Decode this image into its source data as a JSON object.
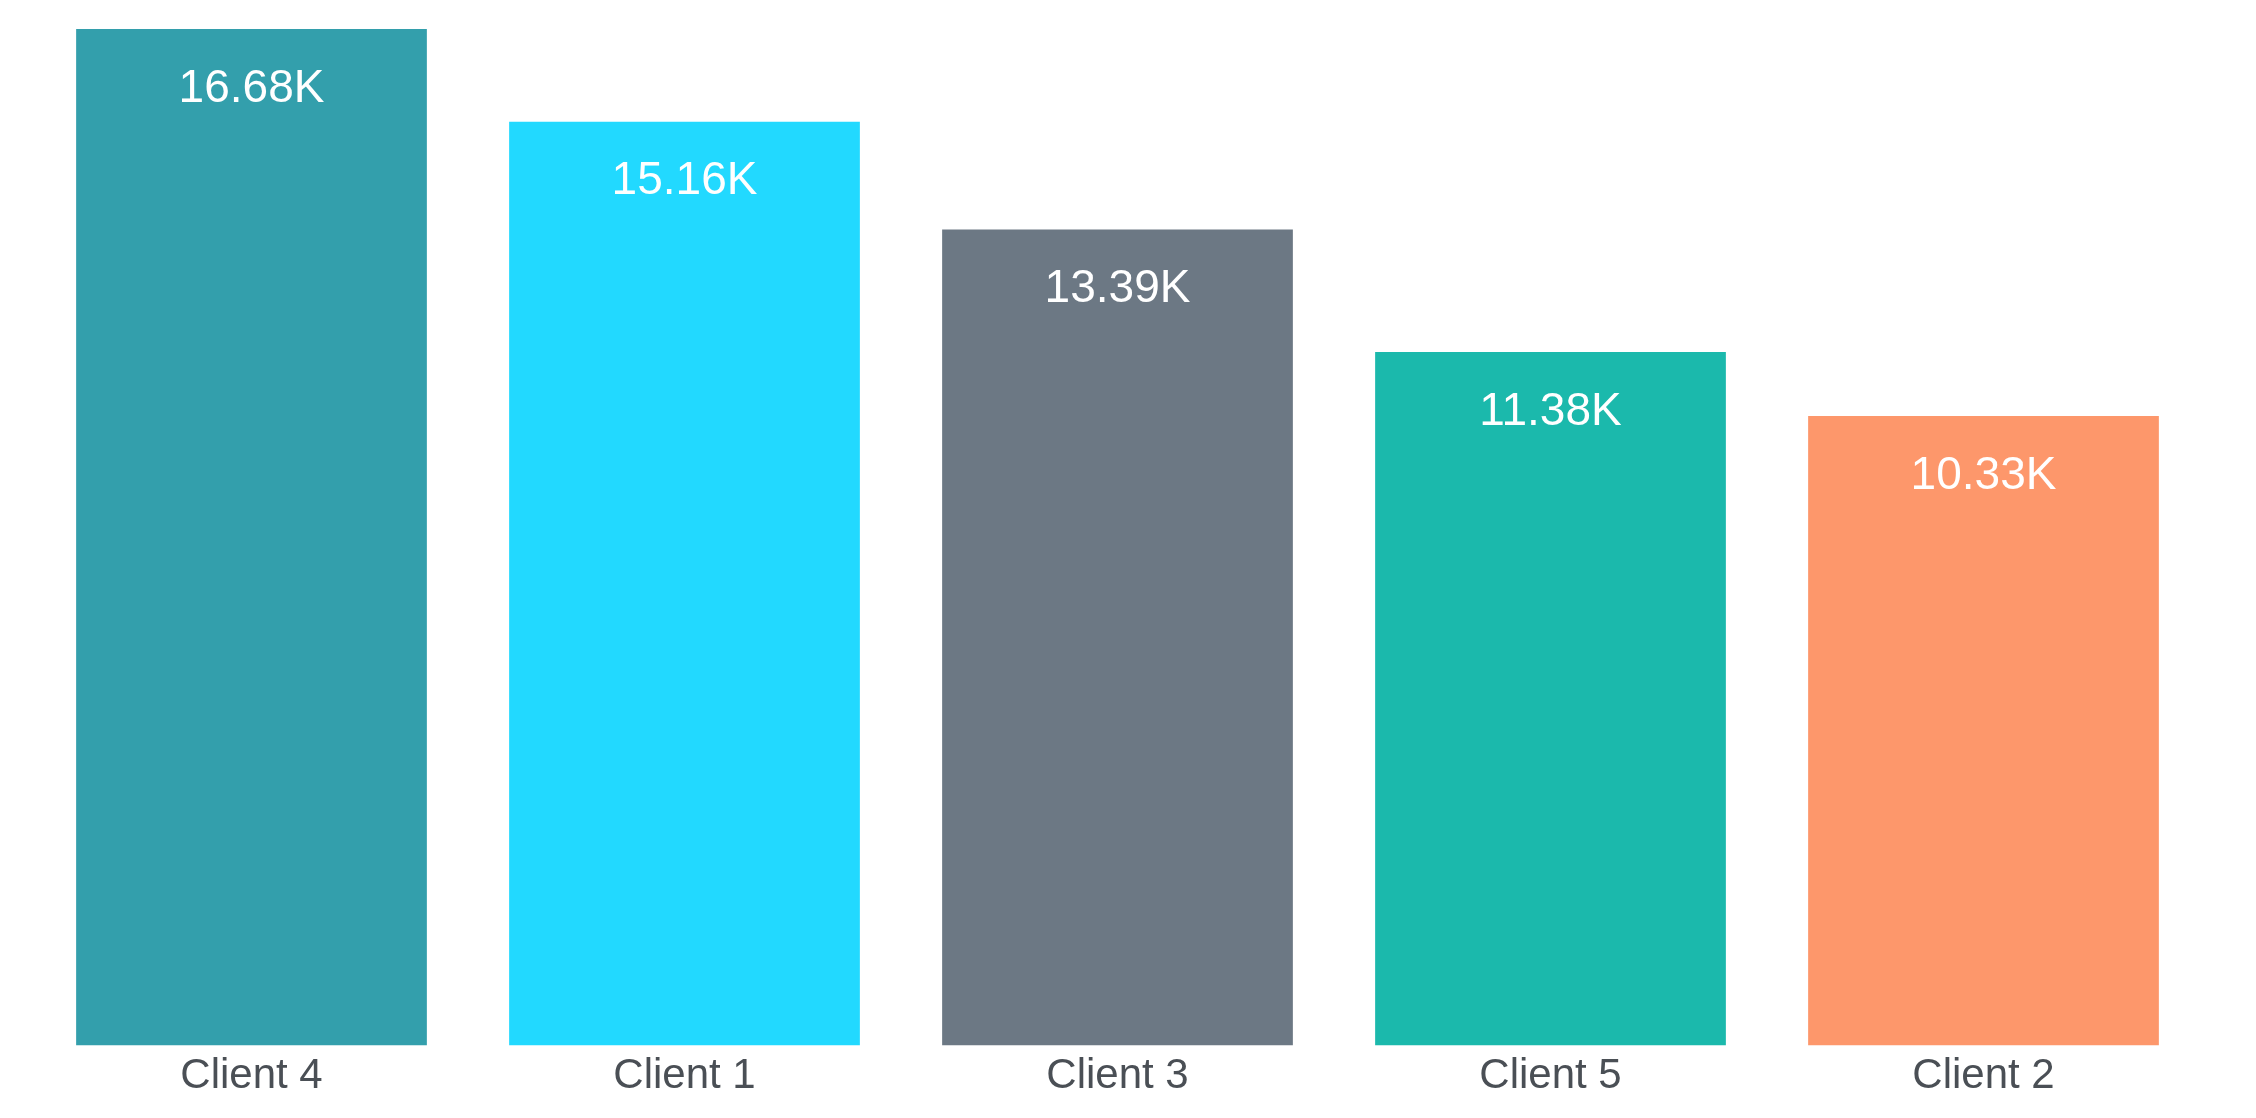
{
  "chart_data": {
    "type": "bar",
    "categories": [
      "Client 4",
      "Client 1",
      "Client 3",
      "Client 5",
      "Client 2"
    ],
    "values": [
      16680,
      15160,
      13390,
      11380,
      10330
    ],
    "value_labels": [
      "16.68K",
      "15.16K",
      "13.39K",
      "11.38K",
      "10.33K"
    ],
    "colors": [
      "#339fac",
      "#22d9ff",
      "#6c7884",
      "#1bb9ac",
      "#fd976b"
    ],
    "grid": false,
    "legend": false
  }
}
